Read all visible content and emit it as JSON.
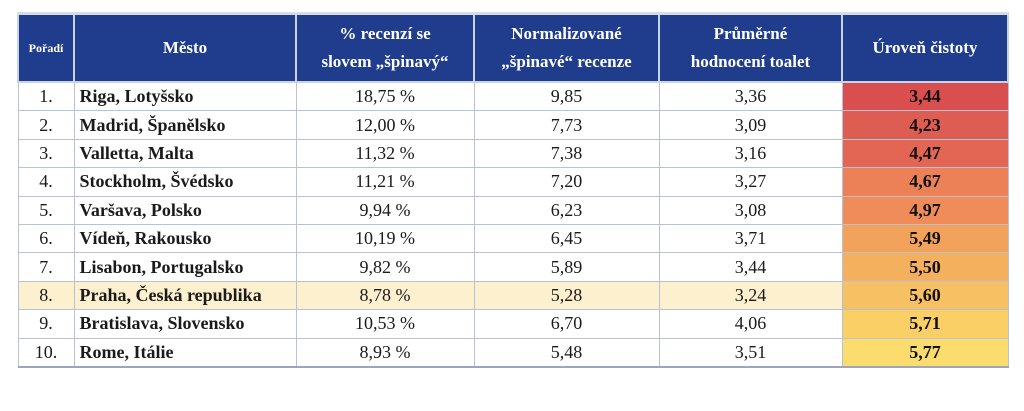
{
  "table": {
    "headers": {
      "rank": "Pořadí",
      "city": "Město",
      "pct_dirty": [
        "% recenzí se",
        "slovem „špinavý“"
      ],
      "norm_dirty": [
        "Normalizované",
        "„špinavé“ recenze"
      ],
      "avg_toilet": [
        "Průměrné",
        "hodnocení toalet"
      ],
      "clean_level": "Úroveň čistoty"
    },
    "rows": [
      {
        "rank": "1.",
        "city": "Riga, Lotyšsko",
        "pct": "18,75 %",
        "norm": "9,85",
        "avg": "3,36",
        "level": "3,44",
        "level_color": "#d94f4f"
      },
      {
        "rank": "2.",
        "city": "Madrid, Španělsko",
        "pct": "12,00 %",
        "norm": "7,73",
        "avg": "3,09",
        "level": "4,23",
        "level_color": "#de5d52"
      },
      {
        "rank": "3.",
        "city": "Valletta, Malta",
        "pct": "11,32 %",
        "norm": "7,38",
        "avg": "3,16",
        "level": "4,47",
        "level_color": "#e26653"
      },
      {
        "rank": "4.",
        "city": "Stockholm, Švédsko",
        "pct": "11,21 %",
        "norm": "7,20",
        "avg": "3,27",
        "level": "4,67",
        "level_color": "#ec8157"
      },
      {
        "rank": "5.",
        "city": "Varšava, Polsko",
        "pct": "9,94 %",
        "norm": "6,23",
        "avg": "3,08",
        "level": "4,97",
        "level_color": "#ef8c59"
      },
      {
        "rank": "6.",
        "city": "Vídeň, Rakousko",
        "pct": "10,19 %",
        "norm": "6,45",
        "avg": "3,71",
        "level": "5,49",
        "level_color": "#f3a25c"
      },
      {
        "rank": "7.",
        "city": "Lisabon, Portugalsko",
        "pct": "9,82 %",
        "norm": "5,89",
        "avg": "3,44",
        "level": "5,50",
        "level_color": "#f5b05e"
      },
      {
        "rank": "8.",
        "city": "Praha, Česká republika",
        "pct": "8,78 %",
        "norm": "5,28",
        "avg": "3,24",
        "level": "5,60",
        "level_color": "#f7c062",
        "highlight": true
      },
      {
        "rank": "9.",
        "city": "Bratislava, Slovensko",
        "pct": "10,53 %",
        "norm": "6,70",
        "avg": "4,06",
        "level": "5,71",
        "level_color": "#f9cf66"
      },
      {
        "rank": "10.",
        "city": "Rome, Itálie",
        "pct": "8,93 %",
        "norm": "5,48",
        "avg": "3,51",
        "level": "5,77",
        "level_color": "#fbdc6c"
      }
    ]
  }
}
